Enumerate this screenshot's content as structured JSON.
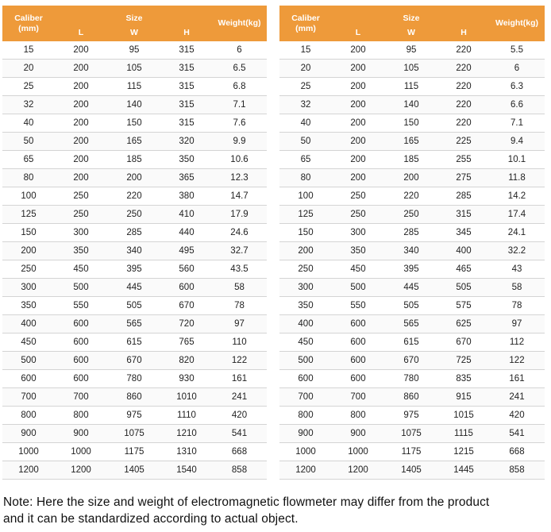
{
  "headers": {
    "caliber": "Caliber",
    "caliber_unit": "(mm)",
    "size": "Size",
    "l": "L",
    "w": "W",
    "h": "H",
    "weight": "Weight(kg)"
  },
  "tables": [
    {
      "rows": [
        [
          "15",
          "200",
          "95",
          "315",
          "6"
        ],
        [
          "20",
          "200",
          "105",
          "315",
          "6.5"
        ],
        [
          "25",
          "200",
          "115",
          "315",
          "6.8"
        ],
        [
          "32",
          "200",
          "140",
          "315",
          "7.1"
        ],
        [
          "40",
          "200",
          "150",
          "315",
          "7.6"
        ],
        [
          "50",
          "200",
          "165",
          "320",
          "9.9"
        ],
        [
          "65",
          "200",
          "185",
          "350",
          "10.6"
        ],
        [
          "80",
          "200",
          "200",
          "365",
          "12.3"
        ],
        [
          "100",
          "250",
          "220",
          "380",
          "14.7"
        ],
        [
          "125",
          "250",
          "250",
          "410",
          "17.9"
        ],
        [
          "150",
          "300",
          "285",
          "440",
          "24.6"
        ],
        [
          "200",
          "350",
          "340",
          "495",
          "32.7"
        ],
        [
          "250",
          "450",
          "395",
          "560",
          "43.5"
        ],
        [
          "300",
          "500",
          "445",
          "600",
          "58"
        ],
        [
          "350",
          "550",
          "505",
          "670",
          "78"
        ],
        [
          "400",
          "600",
          "565",
          "720",
          "97"
        ],
        [
          "450",
          "600",
          "615",
          "765",
          "110"
        ],
        [
          "500",
          "600",
          "670",
          "820",
          "122"
        ],
        [
          "600",
          "600",
          "780",
          "930",
          "161"
        ],
        [
          "700",
          "700",
          "860",
          "1010",
          "241"
        ],
        [
          "800",
          "800",
          "975",
          "1110",
          "420"
        ],
        [
          "900",
          "900",
          "1075",
          "1210",
          "541"
        ],
        [
          "1000",
          "1000",
          "1175",
          "1310",
          "668"
        ],
        [
          "1200",
          "1200",
          "1405",
          "1540",
          "858"
        ]
      ]
    },
    {
      "rows": [
        [
          "15",
          "200",
          "95",
          "220",
          "5.5"
        ],
        [
          "20",
          "200",
          "105",
          "220",
          "6"
        ],
        [
          "25",
          "200",
          "115",
          "220",
          "6.3"
        ],
        [
          "32",
          "200",
          "140",
          "220",
          "6.6"
        ],
        [
          "40",
          "200",
          "150",
          "220",
          "7.1"
        ],
        [
          "50",
          "200",
          "165",
          "225",
          "9.4"
        ],
        [
          "65",
          "200",
          "185",
          "255",
          "10.1"
        ],
        [
          "80",
          "200",
          "200",
          "275",
          "11.8"
        ],
        [
          "100",
          "250",
          "220",
          "285",
          "14.2"
        ],
        [
          "125",
          "250",
          "250",
          "315",
          "17.4"
        ],
        [
          "150",
          "300",
          "285",
          "345",
          "24.1"
        ],
        [
          "200",
          "350",
          "340",
          "400",
          "32.2"
        ],
        [
          "250",
          "450",
          "395",
          "465",
          "43"
        ],
        [
          "300",
          "500",
          "445",
          "505",
          "58"
        ],
        [
          "350",
          "550",
          "505",
          "575",
          "78"
        ],
        [
          "400",
          "600",
          "565",
          "625",
          "97"
        ],
        [
          "450",
          "600",
          "615",
          "670",
          "112"
        ],
        [
          "500",
          "600",
          "670",
          "725",
          "122"
        ],
        [
          "600",
          "600",
          "780",
          "835",
          "161"
        ],
        [
          "700",
          "700",
          "860",
          "915",
          "241"
        ],
        [
          "800",
          "800",
          "975",
          "1015",
          "420"
        ],
        [
          "900",
          "900",
          "1075",
          "1115",
          "541"
        ],
        [
          "1000",
          "1000",
          "1175",
          "1215",
          "668"
        ],
        [
          "1200",
          "1200",
          "1405",
          "1445",
          "858"
        ]
      ]
    }
  ],
  "note": {
    "line1": "Note: Here the size and weight of electromagnetic flowmeter may differ from the product",
    "line2": "and it can be standardized according to actual object."
  },
  "colors": {
    "header_bg": "#ee9a3a",
    "header_text": "#ffffff"
  }
}
